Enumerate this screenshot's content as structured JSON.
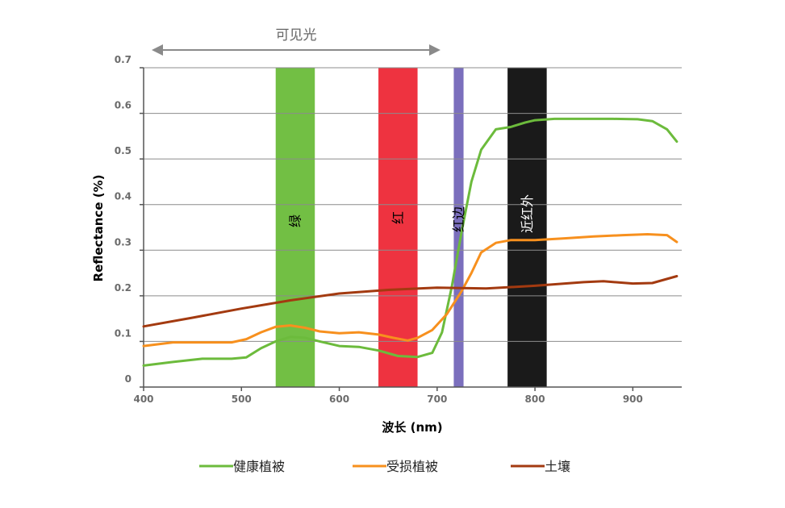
{
  "chart_data": {
    "type": "line",
    "xlabel": "波长 (nm)",
    "ylabel": "Reflectance (%)",
    "xlim": [
      400,
      950
    ],
    "ylim": [
      0,
      0.7
    ],
    "x_ticks": [
      "400",
      "500",
      "600",
      "700",
      "800",
      "900"
    ],
    "y_ticks": [
      "0",
      "0.1",
      "0.2",
      "0.3",
      "0.4",
      "0.5",
      "0.6",
      "0.7"
    ],
    "grid": "horizontal",
    "legend_position": "bottom",
    "visible_range": {
      "label": "可见光",
      "from": 400,
      "to": 710
    },
    "bands": [
      {
        "label": "绿",
        "from": 535,
        "to": 575,
        "color": "#72bf44",
        "text_color": "#000000"
      },
      {
        "label": "红",
        "from": 640,
        "to": 680,
        "color": "#ee3340",
        "text_color": "#000000"
      },
      {
        "label": "红边",
        "from": 717,
        "to": 727,
        "color": "#7b6fbd",
        "text_color": "#000000"
      },
      {
        "label": "近红外",
        "from": 772,
        "to": 812,
        "color": "#1a1a1a",
        "text_color": "#ffffff"
      }
    ],
    "series": [
      {
        "name": "健康植被",
        "color": "#6cbb3c",
        "points": [
          [
            400,
            0.047
          ],
          [
            430,
            0.055
          ],
          [
            460,
            0.062
          ],
          [
            490,
            0.062
          ],
          [
            505,
            0.065
          ],
          [
            520,
            0.085
          ],
          [
            535,
            0.1
          ],
          [
            550,
            0.11
          ],
          [
            565,
            0.108
          ],
          [
            580,
            0.1
          ],
          [
            600,
            0.09
          ],
          [
            620,
            0.088
          ],
          [
            640,
            0.08
          ],
          [
            660,
            0.068
          ],
          [
            680,
            0.066
          ],
          [
            695,
            0.075
          ],
          [
            705,
            0.12
          ],
          [
            715,
            0.22
          ],
          [
            725,
            0.34
          ],
          [
            735,
            0.45
          ],
          [
            745,
            0.52
          ],
          [
            760,
            0.565
          ],
          [
            775,
            0.57
          ],
          [
            790,
            0.58
          ],
          [
            800,
            0.585
          ],
          [
            820,
            0.588
          ],
          [
            850,
            0.588
          ],
          [
            880,
            0.588
          ],
          [
            905,
            0.587
          ],
          [
            920,
            0.583
          ],
          [
            935,
            0.565
          ],
          [
            945,
            0.538
          ]
        ]
      },
      {
        "name": "受损植被",
        "color": "#f7901e",
        "points": [
          [
            400,
            0.09
          ],
          [
            430,
            0.098
          ],
          [
            460,
            0.098
          ],
          [
            490,
            0.098
          ],
          [
            505,
            0.105
          ],
          [
            520,
            0.12
          ],
          [
            535,
            0.132
          ],
          [
            550,
            0.135
          ],
          [
            565,
            0.13
          ],
          [
            580,
            0.122
          ],
          [
            600,
            0.118
          ],
          [
            620,
            0.12
          ],
          [
            640,
            0.115
          ],
          [
            655,
            0.108
          ],
          [
            670,
            0.102
          ],
          [
            680,
            0.108
          ],
          [
            695,
            0.125
          ],
          [
            710,
            0.16
          ],
          [
            725,
            0.21
          ],
          [
            735,
            0.25
          ],
          [
            745,
            0.295
          ],
          [
            760,
            0.316
          ],
          [
            775,
            0.322
          ],
          [
            800,
            0.322
          ],
          [
            830,
            0.326
          ],
          [
            860,
            0.33
          ],
          [
            890,
            0.333
          ],
          [
            915,
            0.335
          ],
          [
            935,
            0.333
          ],
          [
            945,
            0.318
          ]
        ]
      },
      {
        "name": "土壤",
        "color": "#a33a10",
        "points": [
          [
            400,
            0.133
          ],
          [
            450,
            0.152
          ],
          [
            500,
            0.172
          ],
          [
            550,
            0.19
          ],
          [
            600,
            0.205
          ],
          [
            650,
            0.213
          ],
          [
            700,
            0.218
          ],
          [
            750,
            0.216
          ],
          [
            800,
            0.222
          ],
          [
            850,
            0.23
          ],
          [
            870,
            0.232
          ],
          [
            900,
            0.227
          ],
          [
            920,
            0.228
          ],
          [
            945,
            0.243
          ]
        ]
      }
    ]
  }
}
